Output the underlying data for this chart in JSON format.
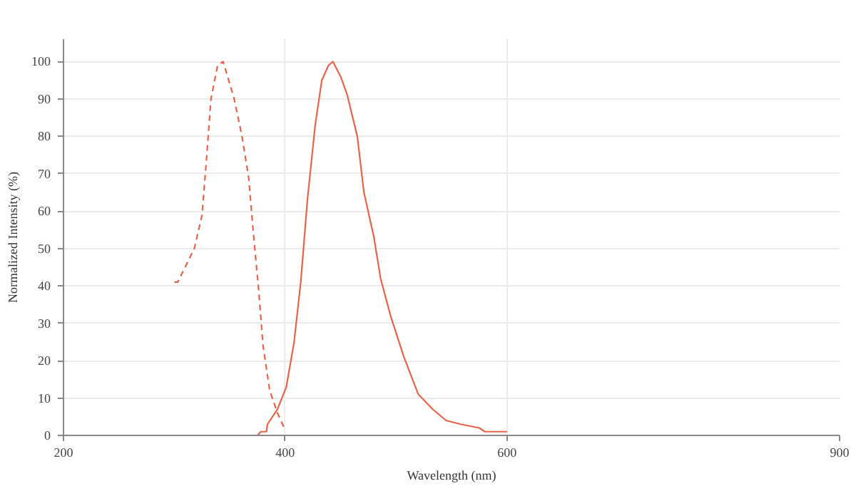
{
  "chart_data": {
    "type": "line",
    "xlabel": "Wavelength (nm)",
    "ylabel": "Normalized Intensity (%)",
    "xlim": [
      200,
      900
    ],
    "xticks": [
      200,
      400,
      600,
      900
    ],
    "ylim": [
      0,
      106
    ],
    "yticks": [
      0,
      10,
      20,
      30,
      40,
      50,
      60,
      70,
      80,
      90,
      100
    ],
    "grid": true,
    "marker": "none",
    "series": [
      {
        "color": "#e8634a",
        "line_style": "dashed",
        "x": [
          300,
          303,
          318,
          325,
          329,
          333,
          339,
          344,
          348,
          354,
          361,
          367,
          371,
          376,
          380,
          386,
          393,
          399
        ],
        "values": [
          41,
          41,
          50,
          59,
          74,
          90,
          99,
          100,
          96,
          90,
          80,
          69,
          55,
          39,
          24,
          12,
          6,
          2
        ]
      },
      {
        "color": "#e8634a",
        "line_style": "solid",
        "x": [
          375,
          378,
          383,
          384,
          393,
          401,
          408,
          414,
          420,
          427,
          433,
          439,
          443,
          450,
          456,
          465,
          471,
          480,
          486,
          495,
          507,
          520,
          533,
          545,
          558,
          575,
          580,
          600
        ],
        "values": [
          0,
          1,
          1,
          3,
          7,
          13,
          25,
          41,
          63,
          83,
          95,
          99,
          100,
          96,
          91,
          80,
          65,
          53,
          42,
          32,
          21,
          11,
          7,
          4,
          3,
          2,
          1,
          1
        ]
      }
    ]
  }
}
